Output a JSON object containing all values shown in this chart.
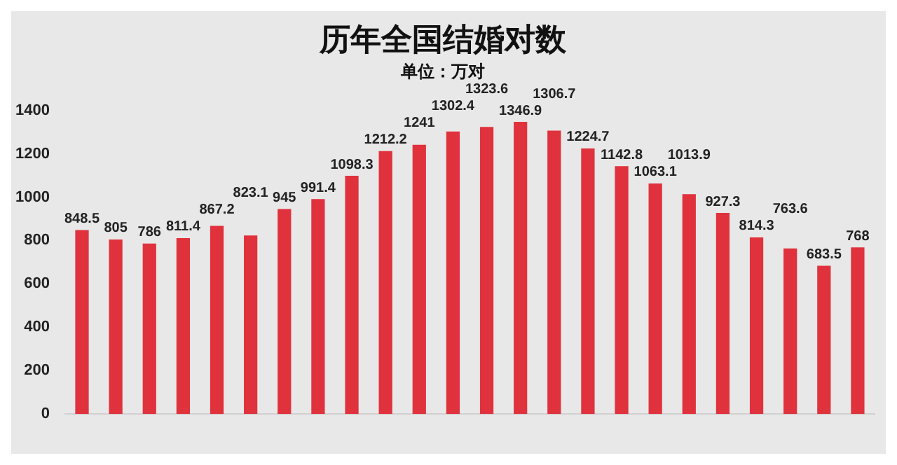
{
  "chart_data": {
    "type": "bar",
    "title": "历年全国结婚对数",
    "subtitle": "单位：万对",
    "categories": [
      null,
      null,
      null,
      null,
      null,
      null,
      null,
      null,
      null,
      null,
      null,
      null,
      null,
      null,
      null,
      null,
      null,
      null,
      null,
      null,
      null,
      null,
      null,
      null
    ],
    "values": [
      848.5,
      805,
      786,
      811.4,
      867.2,
      823.1,
      945,
      991.4,
      1098.3,
      1212.2,
      1241,
      1302.4,
      1323.6,
      1346.9,
      1306.7,
      1224.7,
      1142.8,
      1063.1,
      1013.9,
      927.3,
      814.3,
      763.6,
      683.5,
      768
    ],
    "color": "#e0323c",
    "ylim": [
      0,
      1400
    ],
    "yticks": [
      0,
      200,
      400,
      600,
      800,
      1000,
      1200,
      1400
    ],
    "grid": false,
    "legend": false,
    "data_labels": true
  }
}
